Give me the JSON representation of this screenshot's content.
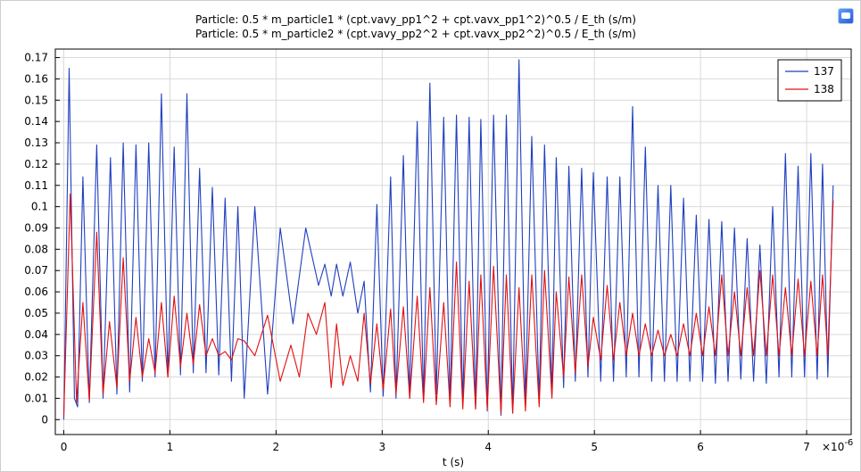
{
  "chart_data": {
    "type": "line",
    "title_lines": [
      "Particle: 0.5 * m_particle1 * (cpt.vavy_pp1^2 + cpt.vavx_pp1^2)^0.5 / E_th (s/m)",
      "Particle: 0.5 * m_particle2 * (cpt.vavy_pp2^2 + cpt.vavx_pp2^2)^0.5 / E_th (s/m)"
    ],
    "xlabel": "t (s)",
    "ylabel": "",
    "x_multiplier": "×10",
    "x_exponent": "-6",
    "xlim": [
      -0.08,
      7.42
    ],
    "ylim": [
      -0.007,
      0.174
    ],
    "x_ticks": [
      0,
      1,
      2,
      3,
      4,
      5,
      6,
      7
    ],
    "x_tick_labels": [
      "0",
      "1",
      "2",
      "3",
      "4",
      "5",
      "6",
      "7"
    ],
    "y_ticks": [
      0,
      0.01,
      0.02,
      0.03,
      0.04,
      0.05,
      0.06,
      0.07,
      0.08,
      0.09,
      0.1,
      0.11,
      0.12,
      0.13,
      0.14,
      0.15,
      0.16,
      0.17
    ],
    "y_tick_labels": [
      "0",
      "0.01",
      "0.02",
      "0.03",
      "0.04",
      "0.05",
      "0.06",
      "0.07",
      "0.08",
      "0.09",
      "0.1",
      "0.11",
      "0.12",
      "0.13",
      "0.14",
      "0.15",
      "0.16",
      "0.17"
    ],
    "grid": true,
    "legend_position": "top-right",
    "series": [
      {
        "name": "137",
        "color": "#1f3fbf",
        "x": [
          0.0,
          0.05,
          0.1,
          0.13,
          0.18,
          0.24,
          0.31,
          0.37,
          0.44,
          0.5,
          0.56,
          0.62,
          0.68,
          0.74,
          0.8,
          0.86,
          0.92,
          0.98,
          1.04,
          1.1,
          1.16,
          1.22,
          1.28,
          1.34,
          1.4,
          1.46,
          1.52,
          1.58,
          1.64,
          1.7,
          1.8,
          1.92,
          2.04,
          2.16,
          2.28,
          2.4,
          2.46,
          2.52,
          2.57,
          2.63,
          2.7,
          2.77,
          2.83,
          2.89,
          2.95,
          3.01,
          3.08,
          3.13,
          3.2,
          3.26,
          3.33,
          3.39,
          3.45,
          3.51,
          3.58,
          3.64,
          3.7,
          3.76,
          3.82,
          3.88,
          3.93,
          3.99,
          4.05,
          4.12,
          4.17,
          4.23,
          4.29,
          4.35,
          4.41,
          4.48,
          4.53,
          4.6,
          4.64,
          4.71,
          4.76,
          4.82,
          4.88,
          4.94,
          4.99,
          5.06,
          5.12,
          5.18,
          5.24,
          5.3,
          5.36,
          5.42,
          5.48,
          5.54,
          5.6,
          5.66,
          5.72,
          5.78,
          5.84,
          5.9,
          5.96,
          6.02,
          6.08,
          6.14,
          6.2,
          6.26,
          6.32,
          6.38,
          6.44,
          6.5,
          6.56,
          6.62,
          6.68,
          6.74,
          6.8,
          6.86,
          6.92,
          6.98,
          7.04,
          7.1,
          7.15,
          7.2,
          7.25
        ],
        "y": [
          0.0,
          0.165,
          0.01,
          0.006,
          0.114,
          0.008,
          0.129,
          0.01,
          0.123,
          0.012,
          0.13,
          0.013,
          0.129,
          0.018,
          0.13,
          0.02,
          0.153,
          0.02,
          0.128,
          0.021,
          0.153,
          0.022,
          0.118,
          0.022,
          0.109,
          0.021,
          0.104,
          0.018,
          0.1,
          0.01,
          0.1,
          0.012,
          0.09,
          0.045,
          0.09,
          0.063,
          0.073,
          0.058,
          0.073,
          0.058,
          0.074,
          0.05,
          0.065,
          0.013,
          0.101,
          0.011,
          0.114,
          0.01,
          0.124,
          0.01,
          0.14,
          0.009,
          0.158,
          0.012,
          0.142,
          0.008,
          0.143,
          0.007,
          0.142,
          0.005,
          0.141,
          0.004,
          0.143,
          0.002,
          0.143,
          0.003,
          0.169,
          0.008,
          0.133,
          0.008,
          0.129,
          0.012,
          0.123,
          0.015,
          0.119,
          0.018,
          0.118,
          0.02,
          0.116,
          0.018,
          0.114,
          0.018,
          0.114,
          0.02,
          0.147,
          0.02,
          0.128,
          0.018,
          0.11,
          0.018,
          0.11,
          0.018,
          0.104,
          0.018,
          0.096,
          0.018,
          0.094,
          0.017,
          0.093,
          0.018,
          0.09,
          0.019,
          0.085,
          0.018,
          0.082,
          0.017,
          0.1,
          0.02,
          0.125,
          0.02,
          0.119,
          0.02,
          0.125,
          0.019,
          0.12,
          0.02,
          0.11
        ]
      },
      {
        "name": "138",
        "color": "#e01010",
        "x": [
          0.0,
          0.06,
          0.12,
          0.18,
          0.24,
          0.31,
          0.37,
          0.43,
          0.5,
          0.56,
          0.62,
          0.68,
          0.74,
          0.8,
          0.86,
          0.92,
          0.98,
          1.04,
          1.1,
          1.16,
          1.22,
          1.28,
          1.34,
          1.4,
          1.46,
          1.52,
          1.58,
          1.64,
          1.7,
          1.8,
          1.92,
          2.04,
          2.14,
          2.22,
          2.3,
          2.38,
          2.46,
          2.52,
          2.57,
          2.63,
          2.7,
          2.77,
          2.83,
          2.89,
          2.95,
          3.01,
          3.08,
          3.13,
          3.2,
          3.26,
          3.33,
          3.39,
          3.45,
          3.51,
          3.58,
          3.64,
          3.7,
          3.76,
          3.82,
          3.88,
          3.93,
          3.99,
          4.05,
          4.12,
          4.17,
          4.23,
          4.29,
          4.35,
          4.41,
          4.48,
          4.53,
          4.6,
          4.64,
          4.71,
          4.76,
          4.82,
          4.88,
          4.94,
          4.99,
          5.06,
          5.12,
          5.18,
          5.24,
          5.3,
          5.36,
          5.42,
          5.48,
          5.54,
          5.6,
          5.66,
          5.72,
          5.78,
          5.84,
          5.9,
          5.96,
          6.02,
          6.08,
          6.14,
          6.2,
          6.26,
          6.32,
          6.38,
          6.44,
          6.5,
          6.56,
          6.62,
          6.68,
          6.74,
          6.8,
          6.86,
          6.92,
          6.98,
          7.04,
          7.1,
          7.15,
          7.2,
          7.25
        ],
        "y": [
          0.002,
          0.106,
          0.008,
          0.055,
          0.009,
          0.088,
          0.012,
          0.046,
          0.015,
          0.076,
          0.018,
          0.048,
          0.02,
          0.038,
          0.022,
          0.055,
          0.02,
          0.058,
          0.025,
          0.05,
          0.026,
          0.054,
          0.03,
          0.038,
          0.03,
          0.032,
          0.028,
          0.038,
          0.037,
          0.03,
          0.049,
          0.018,
          0.035,
          0.02,
          0.05,
          0.04,
          0.055,
          0.015,
          0.045,
          0.016,
          0.03,
          0.018,
          0.05,
          0.017,
          0.045,
          0.014,
          0.052,
          0.012,
          0.053,
          0.01,
          0.058,
          0.008,
          0.062,
          0.007,
          0.055,
          0.006,
          0.074,
          0.005,
          0.065,
          0.005,
          0.068,
          0.005,
          0.072,
          0.003,
          0.068,
          0.003,
          0.062,
          0.004,
          0.068,
          0.006,
          0.07,
          0.01,
          0.06,
          0.02,
          0.067,
          0.022,
          0.068,
          0.025,
          0.048,
          0.028,
          0.063,
          0.028,
          0.055,
          0.03,
          0.05,
          0.03,
          0.045,
          0.03,
          0.042,
          0.03,
          0.04,
          0.03,
          0.045,
          0.03,
          0.05,
          0.03,
          0.053,
          0.03,
          0.068,
          0.03,
          0.06,
          0.03,
          0.062,
          0.03,
          0.07,
          0.03,
          0.068,
          0.03,
          0.062,
          0.03,
          0.066,
          0.03,
          0.065,
          0.03,
          0.068,
          0.03,
          0.103
        ]
      }
    ]
  }
}
